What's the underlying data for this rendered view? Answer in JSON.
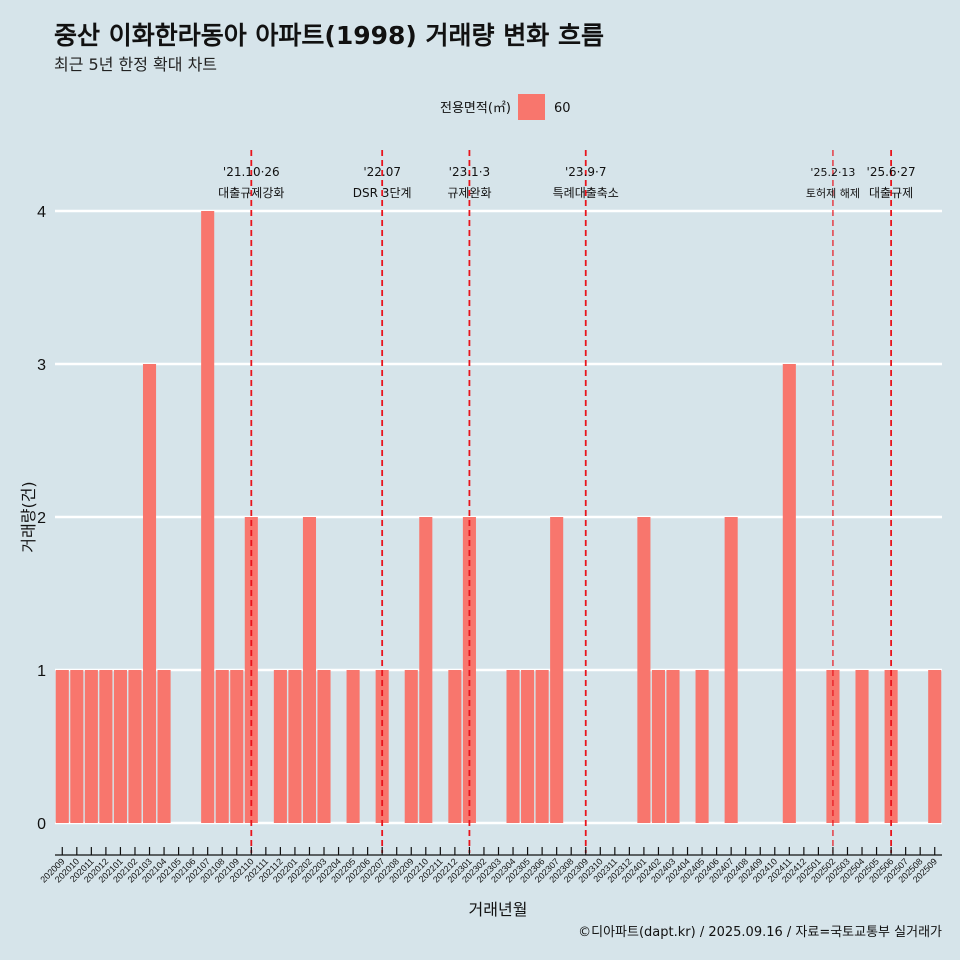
{
  "chart_data": {
    "type": "bar",
    "title": "중산 이화한라동아 아파트(1998) 거래량 변화 흐름",
    "subtitle": "최근 5년 한정 확대 차트",
    "xlabel": "거래년월",
    "ylabel": "거래량(건)",
    "ylim": [
      0,
      4
    ],
    "yticks": [
      "0",
      "1",
      "2",
      "3",
      "4"
    ],
    "grid": true,
    "legend": {
      "title": "전용면적(㎡)",
      "position": "top",
      "entries": [
        "60"
      ]
    },
    "caption": "©디아파트(dapt.kr) / 2025.09.16 / 자료=국토교통부 실거래가",
    "colors": {
      "bar": "#f8766d",
      "background": "#d6e4ea",
      "grid": "#ffffff",
      "event_line": "#e8141c"
    },
    "categories": [
      "202009",
      "202010",
      "202011",
      "202012",
      "202101",
      "202102",
      "202103",
      "202104",
      "202105",
      "202106",
      "202107",
      "202108",
      "202109",
      "202110",
      "202111",
      "202112",
      "202201",
      "202202",
      "202203",
      "202204",
      "202205",
      "202206",
      "202207",
      "202208",
      "202209",
      "202210",
      "202211",
      "202212",
      "202301",
      "202302",
      "202303",
      "202304",
      "202305",
      "202306",
      "202307",
      "202308",
      "202309",
      "202310",
      "202311",
      "202312",
      "202401",
      "202402",
      "202403",
      "202404",
      "202405",
      "202406",
      "202407",
      "202408",
      "202409",
      "202410",
      "202411",
      "202412",
      "202501",
      "202502",
      "202503",
      "202504",
      "202505",
      "202506",
      "202507",
      "202508",
      "202509"
    ],
    "series": [
      {
        "name": "60",
        "values": [
          1,
          1,
          1,
          1,
          1,
          1,
          3,
          1,
          0,
          0,
          4,
          1,
          1,
          2,
          0,
          1,
          1,
          2,
          1,
          0,
          1,
          0,
          1,
          0,
          1,
          2,
          0,
          1,
          2,
          0,
          0,
          1,
          1,
          1,
          2,
          0,
          0,
          0,
          0,
          0,
          2,
          1,
          1,
          0,
          1,
          0,
          2,
          0,
          0,
          0,
          3,
          0,
          0,
          1,
          0,
          1,
          0,
          1,
          0,
          0,
          1
        ]
      }
    ],
    "annotations": [
      {
        "at": "202110",
        "date": "'21.10·26",
        "text": "대출규제강화",
        "size": "normal"
      },
      {
        "at": "202207",
        "date": "'22.07",
        "text": "DSR 3단계",
        "size": "normal"
      },
      {
        "at": "202301",
        "date": "'23.1·3",
        "text": "규제완화",
        "size": "normal"
      },
      {
        "at": "202309",
        "date": "'23.9·7",
        "text": "특례대출축소",
        "size": "normal"
      },
      {
        "at": "202502",
        "date": "'25.2·13",
        "text": "토허제 해제",
        "size": "small"
      },
      {
        "at": "202506",
        "date": "'25.6·27",
        "text": "대출규제",
        "size": "normal"
      }
    ]
  }
}
